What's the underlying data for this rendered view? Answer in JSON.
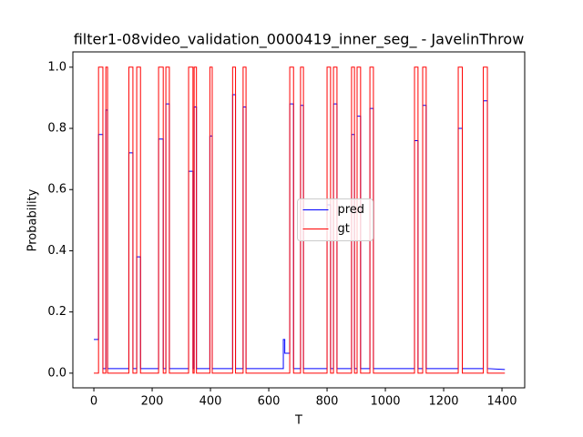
{
  "chart_data": {
    "type": "line",
    "title": "filter1-08video_validation_0000419_inner_seg_ - JavelinThrow",
    "xlabel": "T",
    "ylabel": "Probability",
    "xlim": [
      -72,
      1478
    ],
    "ylim": [
      -0.048,
      1.05
    ],
    "xticks": [
      0,
      200,
      400,
      600,
      800,
      1000,
      1200,
      1400
    ],
    "yticks": [
      {
        "value": 0,
        "label": "0.0"
      },
      0.2,
      0.4,
      0.6,
      0.8,
      {
        "value": 1,
        "label": "1.0"
      }
    ],
    "legend": "center",
    "series": [
      {
        "name": "pred",
        "color": "#0000ff",
        "x": [
          0,
          16,
          16,
          31,
          31,
          41,
          41,
          47,
          47,
          120,
          120,
          134,
          134,
          147,
          147,
          160,
          160,
          222,
          222,
          238,
          238,
          247,
          247,
          259,
          259,
          325,
          325,
          340,
          340,
          344,
          344,
          352,
          352,
          398,
          398,
          406,
          406,
          476,
          476,
          486,
          486,
          512,
          512,
          522,
          522,
          650,
          650,
          655,
          655,
          672,
          672,
          685,
          685,
          709,
          709,
          719,
          719,
          800,
          800,
          812,
          812,
          822,
          822,
          834,
          834,
          884,
          884,
          894,
          894,
          903,
          903,
          915,
          915,
          947,
          947,
          959,
          959,
          1100,
          1100,
          1112,
          1112,
          1128,
          1128,
          1140,
          1140,
          1250,
          1250,
          1264,
          1264,
          1336,
          1336,
          1350,
          1350,
          1410
        ],
        "values": [
          0.11,
          0.11,
          0.78,
          0.78,
          0.015,
          0.015,
          0.86,
          0.86,
          0.015,
          0.015,
          0.72,
          0.72,
          0.015,
          0.015,
          0.38,
          0.38,
          0.015,
          0.015,
          0.765,
          0.765,
          0.015,
          0.015,
          0.88,
          0.88,
          0.015,
          0.015,
          0.66,
          0.66,
          0.015,
          0.015,
          0.87,
          0.87,
          0.015,
          0.015,
          0.775,
          0.775,
          0.015,
          0.015,
          0.91,
          0.91,
          0.015,
          0.015,
          0.87,
          0.87,
          0.015,
          0.015,
          0.11,
          0.11,
          0.065,
          0.065,
          0.88,
          0.88,
          0.015,
          0.015,
          0.875,
          0.875,
          0.015,
          0.015,
          0.55,
          0.55,
          0.015,
          0.015,
          0.88,
          0.88,
          0.015,
          0.015,
          0.78,
          0.78,
          0.015,
          0.015,
          0.84,
          0.84,
          0.015,
          0.015,
          0.865,
          0.865,
          0.015,
          0.015,
          0.76,
          0.76,
          0.015,
          0.015,
          0.875,
          0.875,
          0.015,
          0.015,
          0.8,
          0.8,
          0.015,
          0.015,
          0.89,
          0.89,
          0.015,
          0.012
        ]
      },
      {
        "name": "gt",
        "color": "#ff0000",
        "x": [
          0,
          16,
          16,
          31,
          31,
          41,
          41,
          47,
          47,
          120,
          120,
          134,
          134,
          147,
          147,
          160,
          160,
          222,
          222,
          238,
          238,
          247,
          247,
          259,
          259,
          325,
          325,
          340,
          340,
          344,
          344,
          352,
          352,
          398,
          398,
          406,
          406,
          476,
          476,
          486,
          486,
          512,
          512,
          522,
          522,
          672,
          672,
          685,
          685,
          709,
          709,
          719,
          719,
          800,
          800,
          812,
          812,
          822,
          822,
          834,
          834,
          884,
          884,
          894,
          894,
          903,
          903,
          915,
          915,
          947,
          947,
          959,
          959,
          1100,
          1100,
          1112,
          1112,
          1128,
          1128,
          1140,
          1140,
          1250,
          1250,
          1264,
          1264,
          1336,
          1336,
          1350,
          1350,
          1410
        ],
        "values": [
          0,
          0,
          1,
          1,
          0,
          0,
          1,
          1,
          0,
          0,
          1,
          1,
          0,
          0,
          1,
          1,
          0,
          0,
          1,
          1,
          0,
          0,
          1,
          1,
          0,
          0,
          1,
          1,
          0,
          0,
          1,
          1,
          0,
          0,
          1,
          1,
          0,
          0,
          1,
          1,
          0,
          0,
          1,
          1,
          0,
          0,
          1,
          1,
          0,
          0,
          1,
          1,
          0,
          0,
          1,
          1,
          0,
          0,
          1,
          1,
          0,
          0,
          1,
          1,
          0,
          0,
          1,
          1,
          0,
          0,
          1,
          1,
          0,
          0,
          1,
          1,
          0,
          0,
          1,
          1,
          0,
          0,
          1,
          1,
          0,
          0,
          1,
          1,
          0,
          0
        ]
      }
    ]
  }
}
